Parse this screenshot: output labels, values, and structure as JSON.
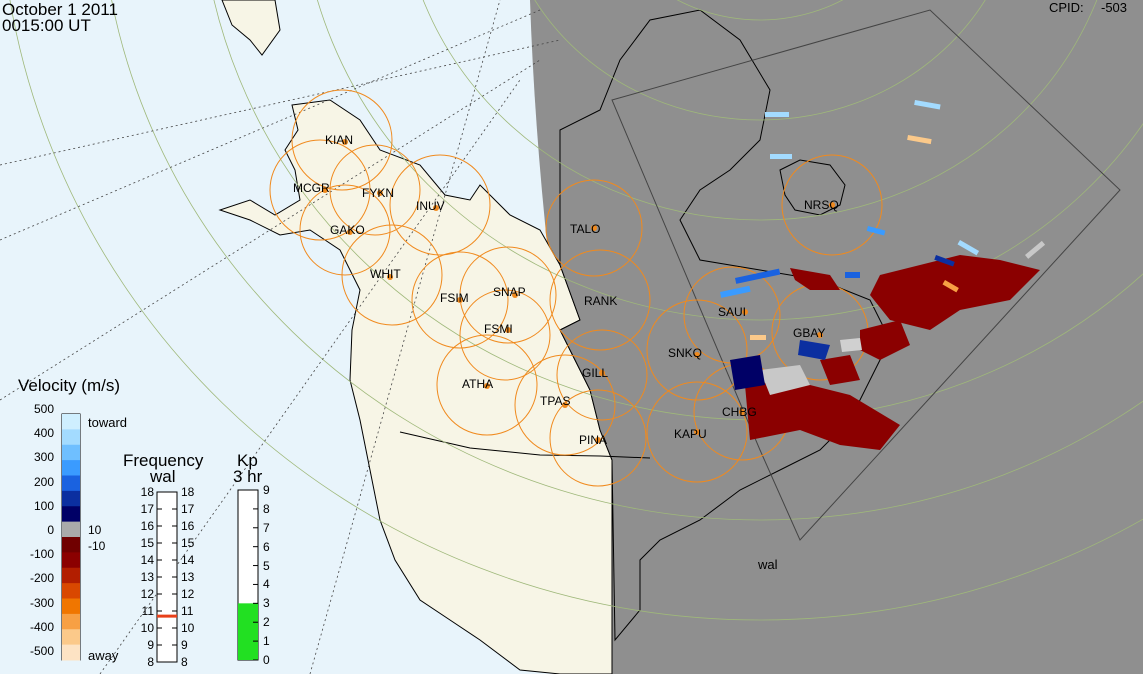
{
  "header": {
    "date": "October  1 2011",
    "time": "0015:00 UT",
    "cpid_label": "CPID:",
    "cpid_value": "-503"
  },
  "velocity_scale": {
    "title": "Velocity (m/s)",
    "toward_label": "toward",
    "away_label": "away",
    "ticks": [
      "500",
      "400",
      "300",
      "200",
      "100",
      "0",
      "-100",
      "-200",
      "-300",
      "-400",
      "-500"
    ],
    "threshold_pos": "10",
    "threshold_neg": "-10",
    "colors": [
      "#cfefff",
      "#a3dbff",
      "#6fbfff",
      "#3a9bff",
      "#1a62e0",
      "#0b2fa0",
      "#000066",
      "#aaaaaa",
      "#700000",
      "#8b0000",
      "#b21e00",
      "#d94800",
      "#f07600",
      "#f7a044",
      "#fbc98a",
      "#fde3c4"
    ]
  },
  "frequency_scale": {
    "title": "Frequency",
    "subtitle": "wal",
    "ticks": [
      "18",
      "17",
      "16",
      "15",
      "14",
      "13",
      "12",
      "11",
      "10",
      "9",
      "8"
    ],
    "current_value": 10.7,
    "marker_color": "#e8401a"
  },
  "kp_scale": {
    "title": "Kp",
    "subtitle": "3 hr",
    "ticks": [
      "9",
      "8",
      "7",
      "6",
      "5",
      "4",
      "3",
      "2",
      "1",
      "0"
    ],
    "current_value": 3,
    "fill_color": "#22e022"
  },
  "radars": [
    {
      "code": "KIAN"
    },
    {
      "code": "MCGR"
    },
    {
      "code": "FYKN"
    },
    {
      "code": "INUV"
    },
    {
      "code": "GAKO"
    },
    {
      "code": "WHIT"
    },
    {
      "code": "FSIM"
    },
    {
      "code": "SNAP"
    },
    {
      "code": "FSMI"
    },
    {
      "code": "ATHA"
    },
    {
      "code": "TPAS"
    },
    {
      "code": "GILL"
    },
    {
      "code": "RANK"
    },
    {
      "code": "TALO"
    },
    {
      "code": "SNKQ"
    },
    {
      "code": "GBAY"
    },
    {
      "code": "SAUI"
    },
    {
      "code": "CHBG"
    },
    {
      "code": "KAPU"
    },
    {
      "code": "PINA"
    },
    {
      "code": "NRSQ"
    }
  ],
  "fov_label": "wal",
  "colors": {
    "night_side": "#8f8f8f",
    "land_day": "#f7f5e6",
    "ocean_day": "#e8f4fb",
    "station_ring": "#f08a1e",
    "station_dot": "#f08a1e"
  }
}
